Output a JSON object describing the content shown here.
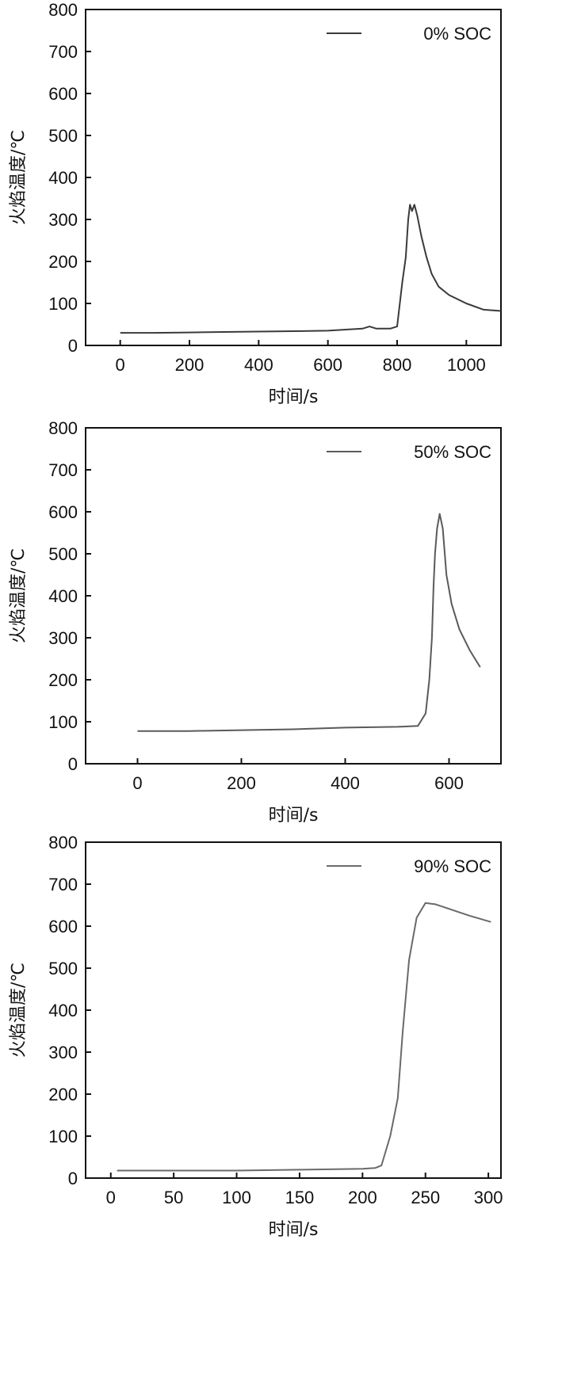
{
  "chart_data": [
    {
      "type": "line",
      "xlabel": "时间/s",
      "ylabel": "火焰温度/℃",
      "xlim": [
        -100,
        1100
      ],
      "ylim": [
        0,
        800
      ],
      "xticks": [
        0,
        200,
        400,
        600,
        800,
        1000
      ],
      "yticks": [
        0,
        100,
        200,
        300,
        400,
        500,
        600,
        700,
        800
      ],
      "legend_position": "top-right",
      "series": [
        {
          "name": "0% SOC",
          "color": "#3a3a3a",
          "points": [
            [
              0,
              30
            ],
            [
              100,
              30
            ],
            [
              200,
              31
            ],
            [
              300,
              32
            ],
            [
              400,
              33
            ],
            [
              500,
              34
            ],
            [
              600,
              35
            ],
            [
              700,
              40
            ],
            [
              720,
              45
            ],
            [
              740,
              40
            ],
            [
              780,
              40
            ],
            [
              800,
              45
            ],
            [
              815,
              150
            ],
            [
              825,
              210
            ],
            [
              832,
              300
            ],
            [
              837,
              335
            ],
            [
              843,
              320
            ],
            [
              850,
              335
            ],
            [
              858,
              310
            ],
            [
              870,
              260
            ],
            [
              885,
              210
            ],
            [
              900,
              170
            ],
            [
              920,
              140
            ],
            [
              950,
              120
            ],
            [
              1000,
              100
            ],
            [
              1050,
              85
            ],
            [
              1100,
              82
            ]
          ]
        }
      ]
    },
    {
      "type": "line",
      "xlabel": "时间/s",
      "ylabel": "火焰温度/℃",
      "xlim": [
        -100,
        700
      ],
      "ylim": [
        0,
        800
      ],
      "xticks": [
        0,
        200,
        400,
        600
      ],
      "yticks": [
        0,
        100,
        200,
        300,
        400,
        500,
        600,
        700,
        800
      ],
      "legend_position": "top-right",
      "series": [
        {
          "name": "50% SOC",
          "color": "#5a5a5a",
          "points": [
            [
              0,
              78
            ],
            [
              100,
              78
            ],
            [
              200,
              80
            ],
            [
              300,
              82
            ],
            [
              400,
              86
            ],
            [
              500,
              88
            ],
            [
              540,
              90
            ],
            [
              555,
              120
            ],
            [
              562,
              200
            ],
            [
              567,
              300
            ],
            [
              570,
              420
            ],
            [
              573,
              500
            ],
            [
              577,
              560
            ],
            [
              582,
              595
            ],
            [
              588,
              560
            ],
            [
              595,
              450
            ],
            [
              605,
              380
            ],
            [
              620,
              320
            ],
            [
              640,
              270
            ],
            [
              660,
              230
            ]
          ]
        }
      ]
    },
    {
      "type": "line",
      "xlabel": "时间/s",
      "ylabel": "火焰温度/℃",
      "xlim": [
        -20,
        310
      ],
      "ylim": [
        0,
        800
      ],
      "xticks": [
        0,
        50,
        100,
        150,
        200,
        250,
        300
      ],
      "yticks": [
        0,
        100,
        200,
        300,
        400,
        500,
        600,
        700,
        800
      ],
      "legend_position": "top-right",
      "series": [
        {
          "name": "90% SOC",
          "color": "#6a6a6a",
          "points": [
            [
              5,
              18
            ],
            [
              50,
              18
            ],
            [
              100,
              18
            ],
            [
              150,
              20
            ],
            [
              200,
              22
            ],
            [
              210,
              24
            ],
            [
              215,
              30
            ],
            [
              222,
              100
            ],
            [
              228,
              190
            ],
            [
              232,
              350
            ],
            [
              237,
              520
            ],
            [
              243,
              620
            ],
            [
              250,
              655
            ],
            [
              258,
              652
            ],
            [
              270,
              640
            ],
            [
              285,
              625
            ],
            [
              302,
              610
            ]
          ]
        }
      ]
    }
  ]
}
